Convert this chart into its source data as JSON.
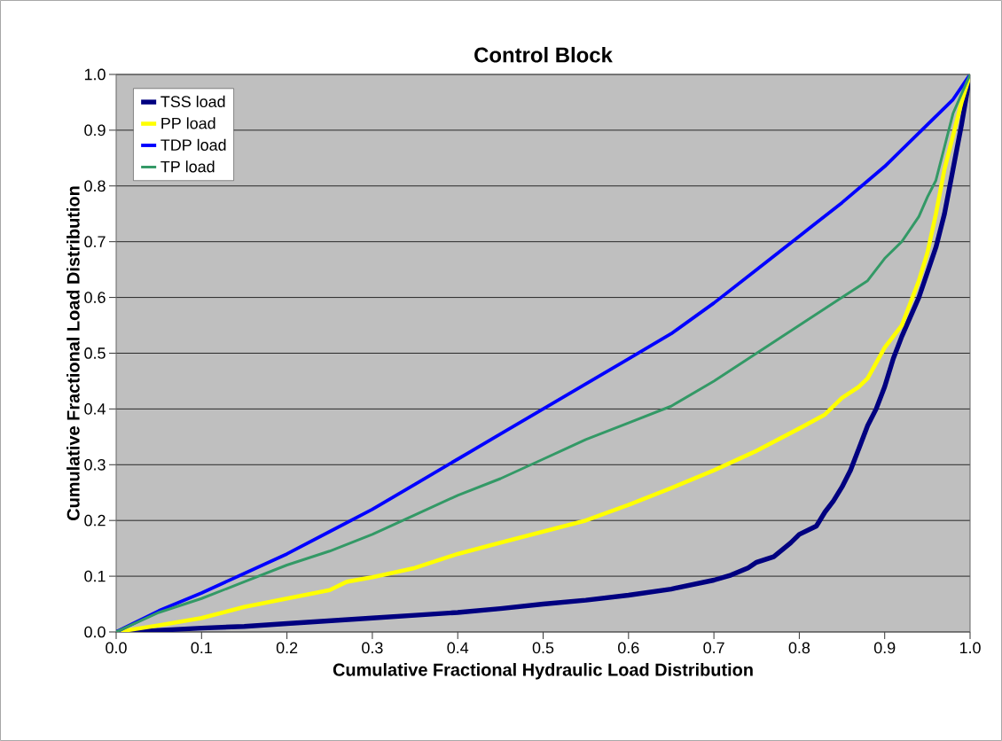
{
  "chart_data": {
    "type": "line",
    "title": "Control Block",
    "xlabel": "Cumulative Fractional Hydraulic Load Distribution",
    "ylabel": "Cumulative Fractional Load Distribution",
    "xlim": [
      0,
      1
    ],
    "ylim": [
      0,
      1
    ],
    "xticks": [
      {
        "value": 0,
        "label": "0.0"
      },
      0.1,
      0.2,
      0.3,
      0.4,
      0.5,
      0.6,
      0.7,
      0.8,
      0.9,
      {
        "value": 1,
        "label": "1.0"
      }
    ],
    "yticks": [
      {
        "value": 0,
        "label": "0.0"
      },
      0.1,
      0.2,
      0.3,
      0.4,
      0.5,
      0.6,
      0.7,
      0.8,
      0.9,
      {
        "value": 1,
        "label": "1.0"
      }
    ],
    "grid": "y",
    "legend": "top left",
    "marker": "none",
    "line_style": "solid",
    "series": [
      {
        "name": "TSS load",
        "color": "#000080",
        "x": [
          0,
          0.05,
          0.1,
          0.15,
          0.2,
          0.25,
          0.3,
          0.35,
          0.4,
          0.45,
          0.5,
          0.55,
          0.6,
          0.65,
          0.7,
          0.72,
          0.74,
          0.75,
          0.77,
          0.79,
          0.8,
          0.82,
          0.83,
          0.84,
          0.85,
          0.86,
          0.87,
          0.88,
          0.89,
          0.9,
          0.91,
          0.92,
          0.94,
          0.96,
          0.97,
          0.98,
          0.99,
          1
        ],
        "values": [
          0,
          0.003,
          0.007,
          0.01,
          0.015,
          0.02,
          0.025,
          0.03,
          0.035,
          0.042,
          0.05,
          0.057,
          0.066,
          0.077,
          0.093,
          0.102,
          0.115,
          0.125,
          0.135,
          0.16,
          0.175,
          0.19,
          0.215,
          0.235,
          0.26,
          0.29,
          0.33,
          0.37,
          0.4,
          0.44,
          0.49,
          0.53,
          0.6,
          0.69,
          0.75,
          0.83,
          0.91,
          1
        ]
      },
      {
        "name": "PP load",
        "color": "#ffff00",
        "x": [
          0,
          0.05,
          0.1,
          0.15,
          0.2,
          0.25,
          0.27,
          0.3,
          0.35,
          0.4,
          0.45,
          0.5,
          0.55,
          0.6,
          0.65,
          0.7,
          0.75,
          0.8,
          0.83,
          0.85,
          0.87,
          0.88,
          0.9,
          0.92,
          0.94,
          0.95,
          0.96,
          0.97,
          0.98,
          0.99,
          1
        ],
        "values": [
          0,
          0.012,
          0.025,
          0.045,
          0.06,
          0.075,
          0.09,
          0.098,
          0.115,
          0.14,
          0.16,
          0.18,
          0.2,
          0.228,
          0.258,
          0.29,
          0.325,
          0.365,
          0.39,
          0.42,
          0.44,
          0.455,
          0.51,
          0.55,
          0.63,
          0.68,
          0.75,
          0.83,
          0.89,
          0.95,
          1
        ]
      },
      {
        "name": "TDP load",
        "color": "#0000ff",
        "x": [
          0,
          0.05,
          0.1,
          0.15,
          0.2,
          0.25,
          0.3,
          0.35,
          0.4,
          0.45,
          0.5,
          0.55,
          0.6,
          0.65,
          0.7,
          0.75,
          0.8,
          0.85,
          0.9,
          0.95,
          0.98,
          1
        ],
        "values": [
          0,
          0.038,
          0.07,
          0.105,
          0.14,
          0.18,
          0.22,
          0.265,
          0.31,
          0.355,
          0.4,
          0.445,
          0.49,
          0.535,
          0.59,
          0.65,
          0.71,
          0.77,
          0.835,
          0.91,
          0.955,
          1
        ]
      },
      {
        "name": "TP load",
        "color": "#339966",
        "x": [
          0,
          0.05,
          0.1,
          0.15,
          0.2,
          0.25,
          0.3,
          0.35,
          0.4,
          0.45,
          0.5,
          0.55,
          0.6,
          0.65,
          0.7,
          0.75,
          0.8,
          0.85,
          0.88,
          0.9,
          0.92,
          0.94,
          0.95,
          0.96,
          0.97,
          0.98,
          1
        ],
        "values": [
          0,
          0.035,
          0.06,
          0.09,
          0.12,
          0.145,
          0.175,
          0.21,
          0.245,
          0.275,
          0.31,
          0.345,
          0.375,
          0.405,
          0.45,
          0.5,
          0.55,
          0.6,
          0.63,
          0.67,
          0.7,
          0.745,
          0.78,
          0.81,
          0.87,
          0.93,
          1
        ]
      }
    ]
  }
}
